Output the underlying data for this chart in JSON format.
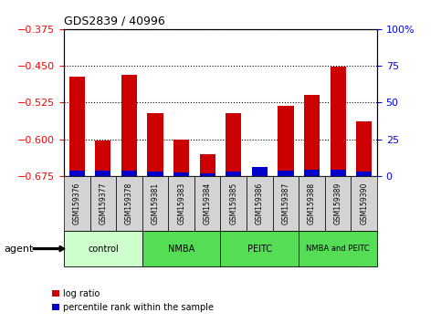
{
  "title": "GDS2839 / 40996",
  "samples": [
    "GSM159376",
    "GSM159377",
    "GSM159378",
    "GSM159381",
    "GSM159383",
    "GSM159384",
    "GSM159385",
    "GSM159386",
    "GSM159387",
    "GSM159388",
    "GSM159389",
    "GSM159390"
  ],
  "log_ratio": [
    -0.473,
    -0.602,
    -0.468,
    -0.546,
    -0.601,
    -0.63,
    -0.547,
    -0.675,
    -0.531,
    -0.51,
    -0.451,
    -0.563
  ],
  "percentile_rank": [
    3.5,
    3.5,
    3.5,
    3.0,
    2.5,
    2.0,
    3.0,
    6.0,
    3.5,
    4.0,
    4.0,
    3.0
  ],
  "ylim_left": [
    -0.675,
    -0.375
  ],
  "ylim_right": [
    0,
    100
  ],
  "yticks_left": [
    -0.675,
    -0.6,
    -0.525,
    -0.45,
    -0.375
  ],
  "yticks_right": [
    0,
    25,
    50,
    75,
    100
  ],
  "group_configs": [
    {
      "label": "control",
      "start": 0,
      "end": 3,
      "color": "#ccffcc"
    },
    {
      "label": "NMBA",
      "start": 3,
      "end": 6,
      "color": "#55dd55"
    },
    {
      "label": "PEITC",
      "start": 6,
      "end": 9,
      "color": "#55dd55"
    },
    {
      "label": "NMBA and PEITC",
      "start": 9,
      "end": 12,
      "color": "#55dd55"
    }
  ],
  "bar_color_red": "#cc0000",
  "bar_color_blue": "#0000cc",
  "base_value": -0.675,
  "bar_width": 0.6,
  "legend_labels": [
    "log ratio",
    "percentile rank within the sample"
  ],
  "legend_colors": [
    "#cc0000",
    "#0000cc"
  ],
  "agent_label": "agent"
}
